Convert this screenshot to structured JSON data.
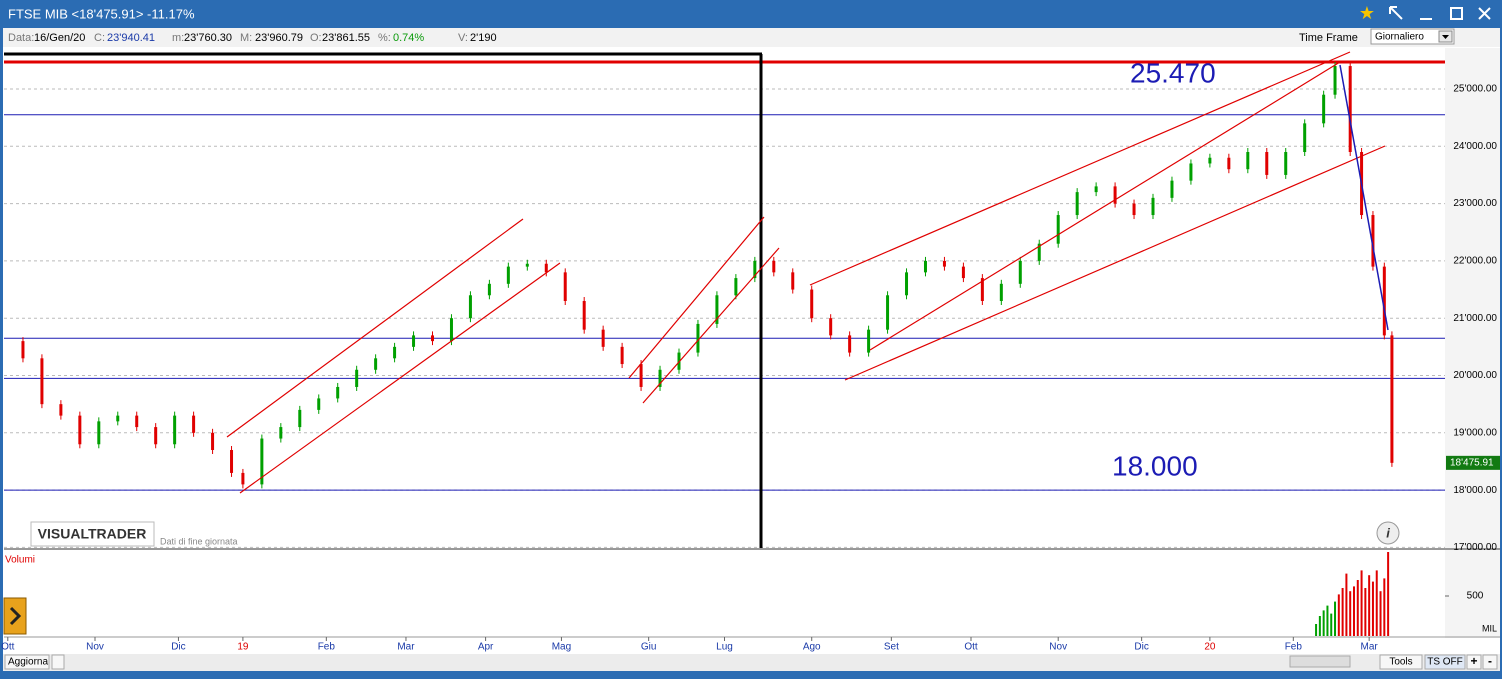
{
  "window": {
    "title": "FTSE MIB <18'475.91> -11.17%"
  },
  "info_bar": {
    "date_label": "Data:",
    "date": "16/Gen/20",
    "close_label": "C:",
    "close": "23'940.41",
    "min_label": "m:",
    "min": "23'760.30",
    "max_label": "M:",
    "max": "23'960.79",
    "open_label": "O:",
    "open": "23'861.55",
    "pct_label": "%:",
    "pct": "0.74%",
    "vol_label": "V:",
    "vol": "2'190",
    "time_frame_label": "Time Frame",
    "time_frame": "Giornaliero"
  },
  "chart_data": {
    "type": "candlestick",
    "x": [
      0,
      5,
      10,
      15,
      20,
      25,
      30,
      35,
      40,
      45,
      50,
      55,
      60,
      63,
      68,
      73,
      78,
      83,
      88,
      93,
      98,
      103,
      108,
      113,
      118,
      123,
      128,
      133,
      138,
      143,
      148,
      153,
      158,
      163,
      168,
      173,
      178,
      183,
      188,
      193,
      198,
      203,
      208,
      213,
      218,
      223,
      228,
      233,
      238,
      243,
      248,
      253,
      258,
      263,
      268,
      273,
      278,
      283,
      288,
      293,
      298,
      303,
      308,
      313,
      318,
      323,
      328,
      333,
      338,
      343,
      348,
      351,
      355,
      358,
      361,
      364,
      366
    ],
    "values": [
      20600,
      20300,
      19500,
      19300,
      18800,
      19200,
      19300,
      19100,
      18800,
      19300,
      19000,
      18700,
      18300,
      18100,
      18900,
      19100,
      19400,
      19600,
      19800,
      20100,
      20300,
      20500,
      20700,
      20600,
      21000,
      21400,
      21600,
      21900,
      21950,
      21800,
      21300,
      20800,
      20500,
      20200,
      19800,
      20100,
      20400,
      20900,
      21400,
      21700,
      22000,
      21800,
      21500,
      21000,
      20700,
      20400,
      20800,
      21400,
      21800,
      22000,
      21900,
      21700,
      21300,
      21600,
      22000,
      22300,
      22800,
      23200,
      23300,
      23000,
      22800,
      23100,
      23400,
      23700,
      23800,
      23600,
      23900,
      23500,
      23900,
      24400,
      24900,
      25400,
      23900,
      22800,
      21900,
      20700,
      18475.91
    ],
    "xlim": [
      0,
      380
    ],
    "ylim": [
      16990,
      25680
    ],
    "yticks": [
      {
        "value": 17000,
        "label": "17'000.00"
      },
      {
        "value": 18000,
        "label": "18'000.00"
      },
      {
        "value": 19000,
        "label": "19'000.00"
      },
      {
        "value": 20000,
        "label": "20'000.00"
      },
      {
        "value": 21000,
        "label": "21'000.00"
      },
      {
        "value": 22000,
        "label": "22'000.00"
      },
      {
        "value": 23000,
        "label": "23'000.00"
      },
      {
        "value": 24000,
        "label": "24'000.00"
      },
      {
        "value": 25000,
        "label": "25'000.00"
      }
    ],
    "xticks": [
      {
        "value": 1,
        "label": "Ott"
      },
      {
        "value": 24,
        "label": "Nov"
      },
      {
        "value": 46,
        "label": "Dic"
      },
      {
        "value": 63,
        "label": "19"
      },
      {
        "value": 85,
        "label": "Feb"
      },
      {
        "value": 106,
        "label": "Mar"
      },
      {
        "value": 127,
        "label": "Apr"
      },
      {
        "value": 147,
        "label": "Mag"
      },
      {
        "value": 170,
        "label": "Giu"
      },
      {
        "value": 190,
        "label": "Lug"
      },
      {
        "value": 213,
        "label": "Ago"
      },
      {
        "value": 234,
        "label": "Set"
      },
      {
        "value": 255,
        "label": "Ott"
      },
      {
        "value": 278,
        "label": "Nov"
      },
      {
        "value": 300,
        "label": "Dic"
      },
      {
        "value": 318,
        "label": "20"
      },
      {
        "value": 340,
        "label": "Feb"
      },
      {
        "value": 360,
        "label": "Mar"
      }
    ],
    "up_color": "#00a000",
    "down_color": "#e00000",
    "grid": true,
    "levels": [
      {
        "value": 25470,
        "label": "25.470",
        "color": "#e00000"
      },
      {
        "value": 24550,
        "color": "#1c1cb4"
      },
      {
        "value": 20650,
        "color": "#1c1cb4"
      },
      {
        "value": 19950,
        "color": "#1c1cb4"
      },
      {
        "value": 18000,
        "label": "18.000",
        "color": "#1c1cb4"
      }
    ],
    "last_price": {
      "value": 18475.91,
      "label": "18'475.91"
    },
    "volume": {
      "title": "Volumi",
      "unit": "MIL",
      "x": [
        346,
        347,
        348,
        349,
        350,
        351,
        352,
        353,
        354,
        355,
        356,
        357,
        358,
        359,
        360,
        361,
        362,
        363,
        364,
        365
      ],
      "values": [
        150,
        250,
        320,
        380,
        280,
        430,
        520,
        600,
        780,
        560,
        620,
        700,
        820,
        600,
        760,
        680,
        820,
        560,
        720,
        1050
      ],
      "colors": [
        "#00a000",
        "#00a000",
        "#00a000",
        "#00a000",
        "#00a000",
        "#00a000",
        "#e00000",
        "#e00000",
        "#e00000",
        "#e00000",
        "#e00000",
        "#e00000",
        "#e00000",
        "#e00000",
        "#e00000",
        "#e00000",
        "#e00000",
        "#e00000",
        "#e00000",
        "#e00000"
      ],
      "ylim": [
        0,
        1050
      ],
      "yticks": [
        500
      ]
    }
  },
  "watermark": {
    "brand": "VISUALTRADER",
    "note": "Dati di fine giornata"
  },
  "footer": {
    "refresh": "Aggiorna",
    "tools": "Tools",
    "ts": "TS OFF",
    "plus": "+",
    "minus": "-"
  }
}
